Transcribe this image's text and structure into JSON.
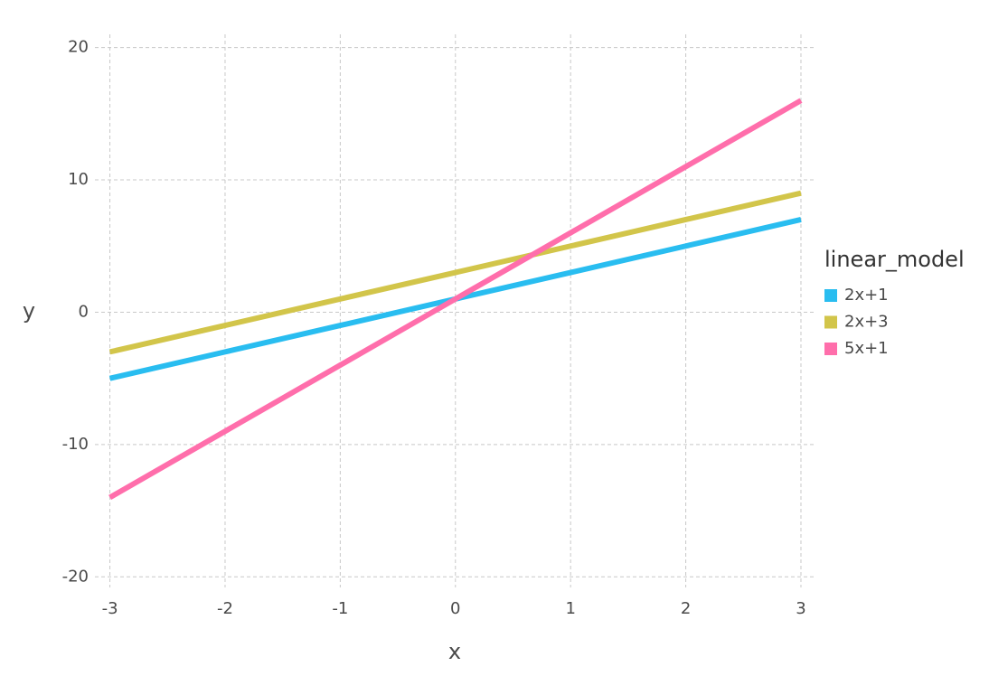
{
  "chart_data": {
    "type": "line",
    "x": [
      -3,
      -2,
      -1,
      0,
      1,
      2,
      3
    ],
    "series": [
      {
        "name": "2x+1",
        "color": "#29bdf0",
        "values": [
          -5,
          -3,
          -1,
          1,
          3,
          5,
          7
        ]
      },
      {
        "name": "2x+3",
        "color": "#d2c54a",
        "values": [
          -3,
          -1,
          1,
          3,
          5,
          7,
          9
        ]
      },
      {
        "name": "5x+1",
        "color": "#ff6eab",
        "values": [
          -14,
          -9,
          -4,
          1,
          6,
          11,
          16
        ]
      }
    ],
    "xlim": [
      -3.13,
      3.11
    ],
    "ylim": [
      -20.8,
      21
    ],
    "xticks": [
      -3,
      -2,
      -1,
      0,
      1,
      2,
      3
    ],
    "yticks": [
      -20,
      -10,
      0,
      10,
      20
    ],
    "x_label": "x",
    "y_label": "y",
    "legend_title": "linear_model",
    "legend_position": "right",
    "grid": true
  }
}
